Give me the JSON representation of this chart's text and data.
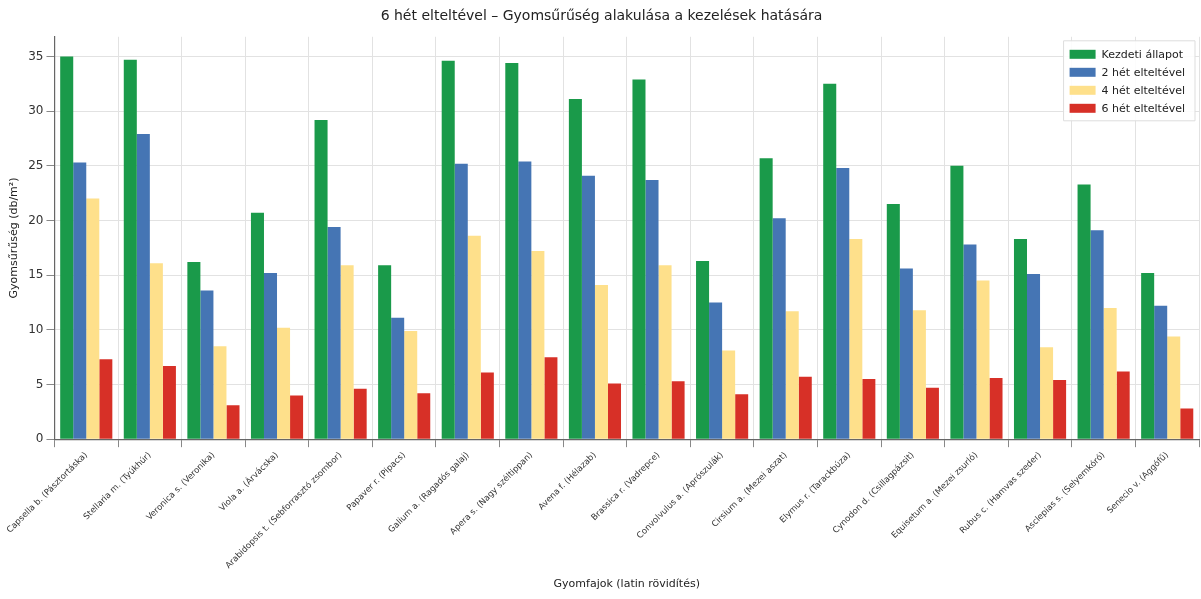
{
  "chart_data": {
    "type": "bar",
    "title": "6 hét elteltével – Gyomsűrűség alakulása a kezelések hatására",
    "xlabel": "Gyomfajok (latin rövidítés)",
    "ylabel": "Gyomsűrűség (db/m²)",
    "categories": [
      "Capsella b. (Pásztortáska)",
      "Stellaria m. (Tyúkhúr)",
      "Veronica s. (Veronika)",
      "Viola a. (Árvácska)",
      "Arabidopsis t. (Sebforrasztó zsombor)",
      "Papaver r. (Pipacs)",
      "Galium a. (Ragadós galaj)",
      "Apera s. (Nagy széltippan)",
      "Avena f. (Hélazab)",
      "Brassica r. (Vadrepce)",
      "Convolvulus a. (Aprószulák)",
      "Cirsium a. (Mezei aszat)",
      "Elymus r. (Tarackbúza)",
      "Cynodon d. (Csillagpázsit)",
      "Equisetum a. (Mezei zsurló)",
      "Rubus c. (Hamvas szeder)",
      "Asclepias s. (Selyemkóró)",
      "Senecio v. (Aggófű)"
    ],
    "series": [
      {
        "name": "Kezdeti állapot",
        "color": "#1a9a4a",
        "values": [
          35,
          34.7,
          16.2,
          20.7,
          29.2,
          15.9,
          34.6,
          34.4,
          31.1,
          32.9,
          16.3,
          25.7,
          32.5,
          21.5,
          25.0,
          18.3,
          23.3,
          15.2
        ]
      },
      {
        "name": "2 hét elteltével",
        "color": "#4575b4",
        "values": [
          25.3,
          27.9,
          13.6,
          15.2,
          19.4,
          11.1,
          25.2,
          25.4,
          24.1,
          23.7,
          12.5,
          20.2,
          24.8,
          15.6,
          17.8,
          15.1,
          19.1,
          12.2
        ]
      },
      {
        "name": "4 hét elteltével",
        "color": "#fee08b",
        "values": [
          22,
          16.1,
          8.5,
          10.2,
          15.9,
          9.9,
          18.6,
          17.2,
          14.1,
          15.9,
          8.1,
          11.7,
          18.3,
          11.8,
          14.5,
          8.4,
          12.0,
          9.4
        ]
      },
      {
        "name": "6 hét elteltével",
        "color": "#d73027",
        "values": [
          7.3,
          6.7,
          3.1,
          4.0,
          4.6,
          4.2,
          6.1,
          7.5,
          5.1,
          5.3,
          4.1,
          5.7,
          5.5,
          4.7,
          5.6,
          5.4,
          6.2,
          2.8
        ]
      }
    ],
    "ylim": [
      0,
      36.8
    ],
    "yticks": [
      0,
      5,
      10,
      15,
      20,
      25,
      30,
      35
    ],
    "grid": true,
    "legend": "top right"
  }
}
